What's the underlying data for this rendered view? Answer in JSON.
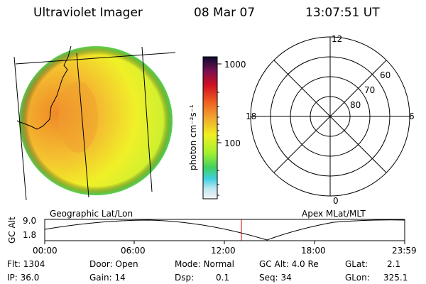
{
  "header": {
    "title": "Ultraviolet Imager",
    "date": "08 Mar 07",
    "time": "13:07:51 UT"
  },
  "colorbar": {
    "unit_label": "photon cm⁻²s⁻¹",
    "ticks": [
      "1000",
      "100"
    ]
  },
  "polar_plot": {
    "mlt_labels": [
      "12",
      "18",
      "6",
      "0"
    ],
    "lat_labels": [
      "60",
      "70",
      "80"
    ]
  },
  "altitude_panel": {
    "ylabel": "GC Alt",
    "y_ticks": [
      "9.0",
      "1.8"
    ],
    "left_title": "Geographic Lat/Lon",
    "right_title": "Apex MLat/MLT",
    "x_ticks": [
      "00:00",
      "06:00",
      "12:00",
      "18:00",
      "23:59"
    ]
  },
  "info": {
    "flt": "Flt: 1304",
    "ip": "IP: 36.0",
    "door": "Door: Open",
    "gain": "Gain: 14",
    "mode": "Mode: Normal",
    "dsp_label": "Dsp:",
    "dsp_value": "0.1",
    "gc_alt": "GC Alt: 4.0 Re",
    "seq": "Seq: 34",
    "glat_label": "GLat:",
    "glat_value": "2.1",
    "glon_label": "GLon:",
    "glon_value": "325.1"
  },
  "colors": {
    "disk_orange": "#f0a030",
    "disk_yellow": "#f0f020",
    "disk_green": "#80e040",
    "marker_red": "#cc0000"
  }
}
